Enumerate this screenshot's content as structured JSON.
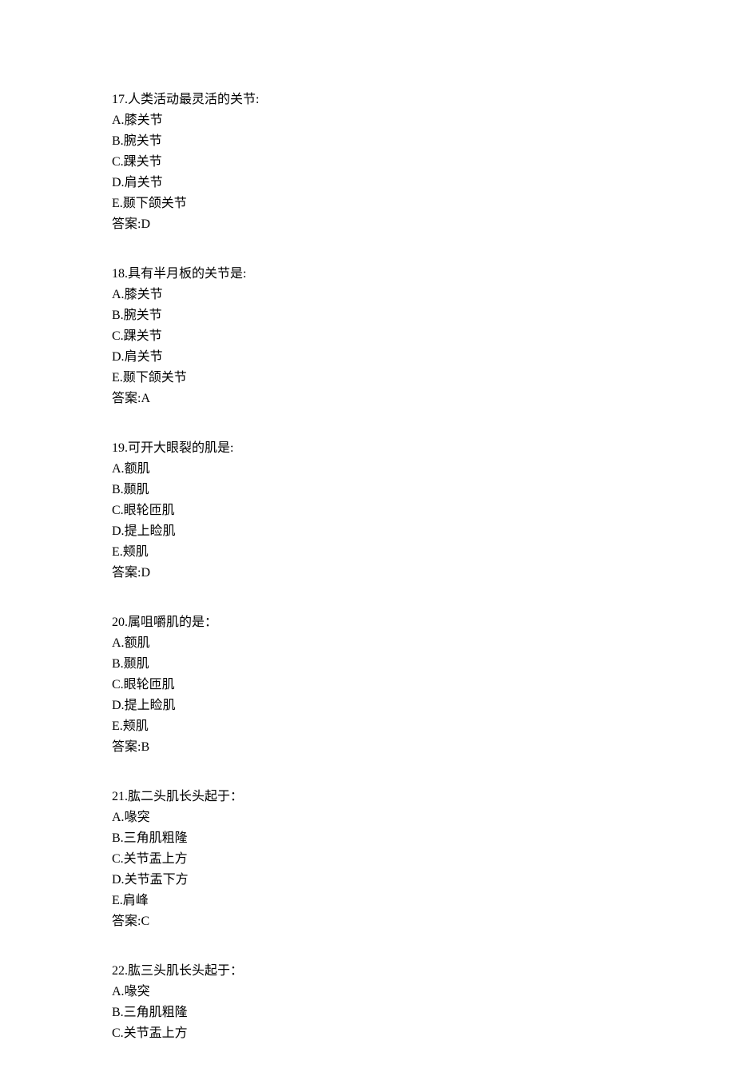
{
  "page": {
    "background_color": "#ffffff",
    "text_color": "#000000",
    "font_size": 16,
    "line_height": 26,
    "font_family": "SimSun"
  },
  "questions": [
    {
      "number": "17",
      "stem": "人类活动最灵活的关节:",
      "options": {
        "A": "膝关节",
        "B": "腕关节",
        "C": "踝关节",
        "D": "肩关节",
        "E": "颞下颌关节"
      },
      "answer_label": "答案:",
      "answer": "D"
    },
    {
      "number": "18",
      "stem": "具有半月板的关节是:",
      "options": {
        "A": "膝关节",
        "B": "腕关节",
        "C": "踝关节",
        "D": "肩关节",
        "E": "颞下颌关节"
      },
      "answer_label": "答案:",
      "answer": "A"
    },
    {
      "number": "19",
      "stem": "可开大眼裂的肌是:",
      "options": {
        "A": "额肌",
        "B": "颞肌",
        "C": "眼轮匝肌",
        "D": "提上睑肌",
        "E": "颊肌"
      },
      "answer_label": "答案:",
      "answer": "D"
    },
    {
      "number": "20",
      "stem": "属咀嚼肌的是：",
      "options": {
        "A": "额肌",
        "B": "颞肌",
        "C": "眼轮匝肌",
        "D": "提上睑肌",
        "E": "颊肌"
      },
      "answer_label": "答案:",
      "answer": "B"
    },
    {
      "number": "21",
      "stem": "肱二头肌长头起于：",
      "options": {
        "A": "喙突",
        "B": "三角肌粗隆",
        "C": "关节盂上方",
        "D": "关节盂下方",
        "E": "肩峰"
      },
      "answer_label": "答案:",
      "answer": "C"
    },
    {
      "number": "22",
      "stem": "肱三头肌长头起于：",
      "options": {
        "A": "喙突",
        "B": "三角肌粗隆",
        "C": "关节盂上方"
      },
      "answer_label": "",
      "answer": ""
    }
  ]
}
